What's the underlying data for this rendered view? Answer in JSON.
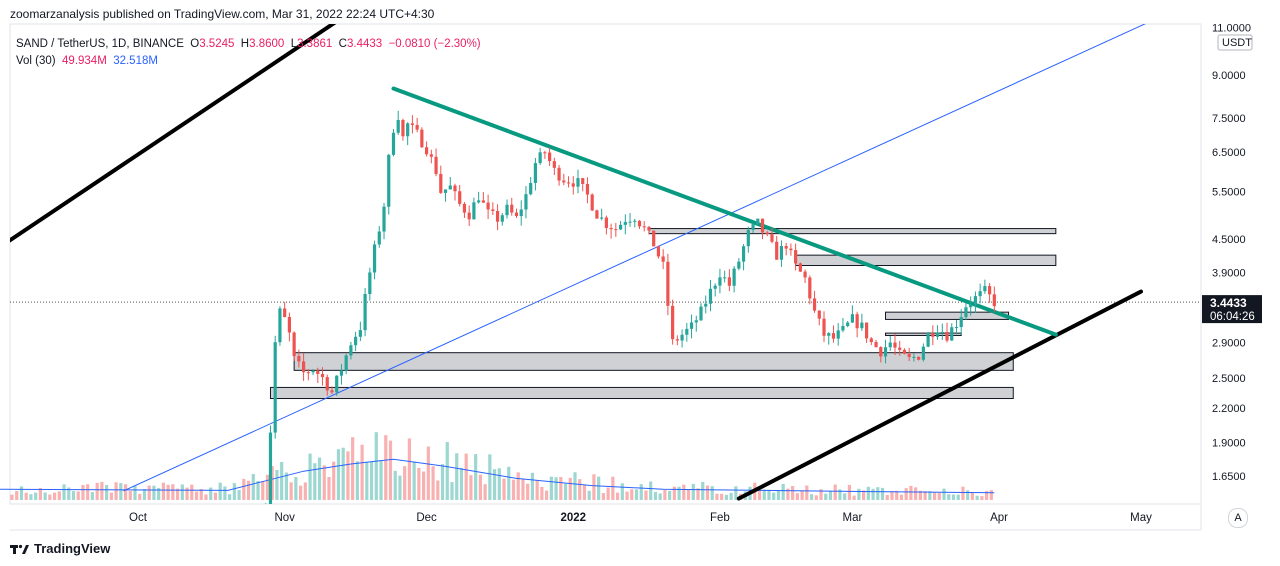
{
  "publish_line": "zoomarzanalysis published on TradingView.com, Mar 31, 2022 22:24 UTC+4:30",
  "footer": {
    "brand": "TradingView"
  },
  "auto_button": "A",
  "chart_data": {
    "type": "candlestick",
    "symbol_line": {
      "title": "SAND / TetherUS, 1D, BINANCE",
      "o_label": "O",
      "o": "3.5245",
      "h_label": "H",
      "h": "3.8600",
      "l_label": "L",
      "l": "3.3861",
      "c_label": "C",
      "c": "3.4433",
      "change": "−0.0810 (−2.30%)"
    },
    "volume_line": {
      "label": "Vol (30)",
      "v1": "49.934M",
      "v2": "32.518M"
    },
    "price_axis": {
      "currency": "USDT",
      "scale": "log",
      "ticks": [
        "11.0000",
        "9.0000",
        "7.5000",
        "6.5000",
        "5.5000",
        "4.5000",
        "3.9000",
        "3.4433",
        "2.9000",
        "2.5000",
        "2.2000",
        "1.9000",
        "1.6500"
      ],
      "tick_values": [
        11.0,
        9.0,
        7.5,
        6.5,
        5.5,
        4.5,
        3.9,
        2.9,
        2.5,
        2.2,
        1.9,
        1.65
      ],
      "last_price": "3.4433",
      "countdown": "06:04:26"
    },
    "time_axis": {
      "labels": [
        {
          "text": "Oct",
          "date": "2021-10-01"
        },
        {
          "text": "Nov",
          "date": "2021-11-01"
        },
        {
          "text": "Dec",
          "date": "2021-12-01"
        },
        {
          "text": "2022",
          "date": "2022-01-01"
        },
        {
          "text": "Feb",
          "date": "2022-02-01"
        },
        {
          "text": "Mar",
          "date": "2022-03-01"
        },
        {
          "text": "Apr",
          "date": "2022-04-01"
        },
        {
          "text": "May",
          "date": "2022-05-01"
        }
      ]
    },
    "price_path": [
      [
        "2021-10-27",
        1.3
      ],
      [
        "2021-10-28",
        1.45
      ],
      [
        "2021-10-29",
        2.0
      ],
      [
        "2021-10-30",
        2.9
      ],
      [
        "2021-10-31",
        3.3
      ],
      [
        "2021-11-01",
        3.2
      ],
      [
        "2021-11-02",
        3.0
      ],
      [
        "2021-11-03",
        2.7
      ],
      [
        "2021-11-05",
        2.55
      ],
      [
        "2021-11-07",
        2.6
      ],
      [
        "2021-11-09",
        2.5
      ],
      [
        "2021-11-11",
        2.35
      ],
      [
        "2021-11-13",
        2.6
      ],
      [
        "2021-11-15",
        2.9
      ],
      [
        "2021-11-17",
        3.1
      ],
      [
        "2021-11-18",
        3.5
      ],
      [
        "2021-11-19",
        3.9
      ],
      [
        "2021-11-20",
        4.3
      ],
      [
        "2021-11-21",
        4.7
      ],
      [
        "2021-11-22",
        5.2
      ],
      [
        "2021-11-23",
        6.3
      ],
      [
        "2021-11-24",
        7.2
      ],
      [
        "2021-11-25",
        7.6
      ],
      [
        "2021-11-26",
        6.9
      ],
      [
        "2021-11-27",
        7.3
      ],
      [
        "2021-11-29",
        7.0
      ],
      [
        "2021-12-01",
        6.6
      ],
      [
        "2021-12-03",
        6.0
      ],
      [
        "2021-12-04",
        5.5
      ],
      [
        "2021-12-06",
        5.6
      ],
      [
        "2021-12-08",
        5.2
      ],
      [
        "2021-12-10",
        5.0
      ],
      [
        "2021-12-12",
        5.4
      ],
      [
        "2021-12-14",
        5.0
      ],
      [
        "2021-12-16",
        4.9
      ],
      [
        "2021-12-18",
        5.1
      ],
      [
        "2021-12-20",
        4.9
      ],
      [
        "2021-12-22",
        5.4
      ],
      [
        "2021-12-24",
        6.2
      ],
      [
        "2021-12-26",
        6.5
      ],
      [
        "2021-12-28",
        6.0
      ],
      [
        "2021-12-30",
        5.8
      ],
      [
        "2022-01-02",
        5.7
      ],
      [
        "2022-01-04",
        5.4
      ],
      [
        "2022-01-06",
        5.0
      ],
      [
        "2022-01-08",
        4.8
      ],
      [
        "2022-01-10",
        4.7
      ],
      [
        "2022-01-12",
        4.9
      ],
      [
        "2022-01-14",
        4.95
      ],
      [
        "2022-01-16",
        4.7
      ],
      [
        "2022-01-18",
        4.4
      ],
      [
        "2022-01-20",
        4.0
      ],
      [
        "2022-01-21",
        3.4
      ],
      [
        "2022-01-22",
        2.9
      ],
      [
        "2022-01-24",
        3.0
      ],
      [
        "2022-01-26",
        3.1
      ],
      [
        "2022-01-28",
        3.3
      ],
      [
        "2022-01-30",
        3.6
      ],
      [
        "2022-02-01",
        3.9
      ],
      [
        "2022-02-03",
        3.7
      ],
      [
        "2022-02-05",
        4.1
      ],
      [
        "2022-02-07",
        4.6
      ],
      [
        "2022-02-09",
        4.8
      ],
      [
        "2022-02-11",
        4.5
      ],
      [
        "2022-02-13",
        4.2
      ],
      [
        "2022-02-15",
        4.4
      ],
      [
        "2022-02-17",
        4.0
      ],
      [
        "2022-02-19",
        3.8
      ],
      [
        "2022-02-21",
        3.3
      ],
      [
        "2022-02-23",
        3.0
      ],
      [
        "2022-02-25",
        2.95
      ],
      [
        "2022-02-27",
        3.05
      ],
      [
        "2022-03-01",
        3.2
      ],
      [
        "2022-03-03",
        3.1
      ],
      [
        "2022-03-05",
        2.9
      ],
      [
        "2022-03-07",
        2.8
      ],
      [
        "2022-03-09",
        2.9
      ],
      [
        "2022-03-11",
        2.75
      ],
      [
        "2022-03-13",
        2.7
      ],
      [
        "2022-03-15",
        2.75
      ],
      [
        "2022-03-17",
        3.0
      ],
      [
        "2022-03-19",
        3.1
      ],
      [
        "2022-03-21",
        3.0
      ],
      [
        "2022-03-23",
        3.15
      ],
      [
        "2022-03-25",
        3.4
      ],
      [
        "2022-03-27",
        3.5
      ],
      [
        "2022-03-29",
        3.6
      ],
      [
        "2022-03-31",
        3.4433
      ]
    ],
    "drawings": {
      "green_trendline": {
        "color": "#089981",
        "from": [
          "2021-11-24",
          8.5
        ],
        "to": [
          "2022-04-13",
          3.0
        ]
      },
      "blue_trendline": {
        "color": "#2962ff",
        "from": [
          "2021-09-28",
          1.55
        ],
        "to": [
          "2022-05-05",
          11.5
        ]
      },
      "black_channel_upper": {
        "color": "#000000",
        "from": [
          "2021-09-01",
          4.3
        ],
        "to": [
          "2021-11-14",
          11.6
        ]
      },
      "black_channel_lower": {
        "color": "#000000",
        "from": [
          "2022-02-05",
          1.5
        ],
        "to": [
          "2022-05-01",
          3.6
        ]
      },
      "zones": [
        {
          "from": "2022-01-17",
          "to": "2022-04-13",
          "top": 4.7,
          "bottom": 4.6
        },
        {
          "from": "2022-02-17",
          "to": "2022-04-13",
          "top": 4.2,
          "bottom": 4.02
        },
        {
          "from": "2022-03-08",
          "to": "2022-04-03",
          "top": 3.3,
          "bottom": 3.2
        },
        {
          "from": "2022-03-08",
          "to": "2022-03-24",
          "top": 3.02,
          "bottom": 2.99
        },
        {
          "from": "2021-11-03",
          "to": "2022-04-04",
          "top": 2.78,
          "bottom": 2.58
        },
        {
          "from": "2021-10-29",
          "to": "2022-04-04",
          "top": 2.4,
          "bottom": 2.29
        }
      ]
    },
    "volume_ma": [
      [
        "2021-09-01",
        0.9
      ],
      [
        "2021-10-20",
        0.8
      ],
      [
        "2021-10-28",
        1.6
      ],
      [
        "2021-11-05",
        2.4
      ],
      [
        "2021-11-15",
        3.0
      ],
      [
        "2021-11-24",
        3.4
      ],
      [
        "2021-12-05",
        2.8
      ],
      [
        "2021-12-20",
        1.8
      ],
      [
        "2022-01-05",
        1.2
      ],
      [
        "2022-01-20",
        0.9
      ],
      [
        "2022-02-10",
        0.8
      ],
      [
        "2022-03-05",
        0.7
      ],
      [
        "2022-03-31",
        0.6
      ]
    ]
  }
}
